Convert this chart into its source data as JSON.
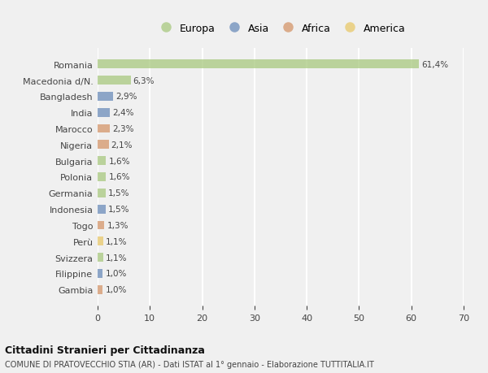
{
  "categories": [
    "Romania",
    "Macedonia d/N.",
    "Bangladesh",
    "India",
    "Marocco",
    "Nigeria",
    "Bulgaria",
    "Polonia",
    "Germania",
    "Indonesia",
    "Togo",
    "Perù",
    "Svizzera",
    "Filippine",
    "Gambia"
  ],
  "values": [
    61.4,
    6.3,
    2.9,
    2.4,
    2.3,
    2.1,
    1.6,
    1.6,
    1.5,
    1.5,
    1.3,
    1.1,
    1.1,
    1.0,
    1.0
  ],
  "labels": [
    "61,4%",
    "6,3%",
    "2,9%",
    "2,4%",
    "2,3%",
    "2,1%",
    "1,6%",
    "1,6%",
    "1,5%",
    "1,5%",
    "1,3%",
    "1,1%",
    "1,1%",
    "1,0%",
    "1,0%"
  ],
  "continents": [
    "Europa",
    "Europa",
    "Asia",
    "Asia",
    "Africa",
    "Africa",
    "Europa",
    "Europa",
    "Europa",
    "Asia",
    "Africa",
    "America",
    "Europa",
    "Asia",
    "Africa"
  ],
  "continent_colors": {
    "Europa": "#a8c97f",
    "Asia": "#6b8cba",
    "Africa": "#d4956a",
    "America": "#e8c96a"
  },
  "legend_order": [
    "Europa",
    "Asia",
    "Africa",
    "America"
  ],
  "title": "Cittadini Stranieri per Cittadinanza",
  "subtitle": "COMUNE DI PRATOVECCHIO STIA (AR) - Dati ISTAT al 1° gennaio - Elaborazione TUTTITALIA.IT",
  "xlim": [
    0,
    70
  ],
  "xticks": [
    0,
    10,
    20,
    30,
    40,
    50,
    60,
    70
  ],
  "background_color": "#f0f0f0",
  "plot_bg_color": "#f0f0f0",
  "grid_color": "#ffffff",
  "bar_alpha": 0.75,
  "bar_height": 0.55
}
